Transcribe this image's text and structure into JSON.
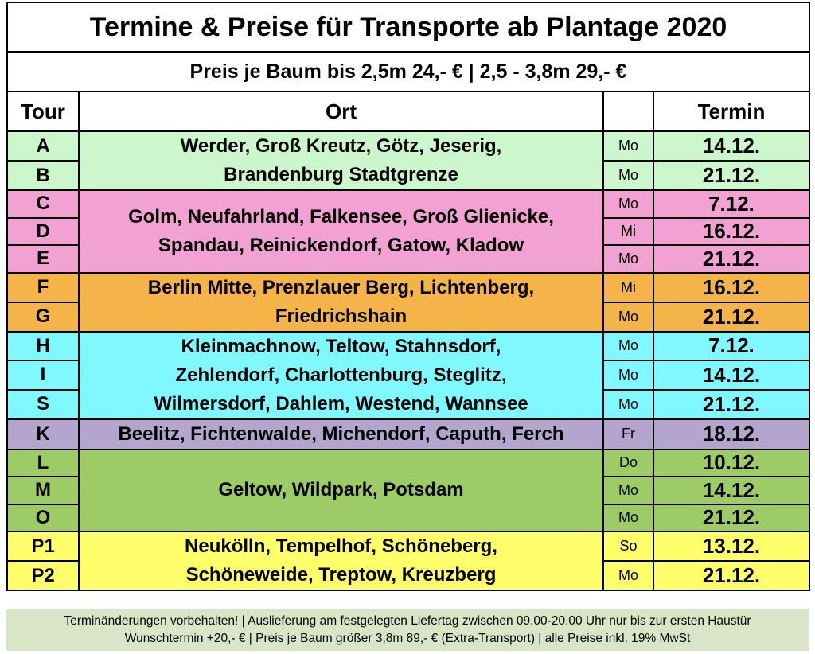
{
  "title": "Termine & Preise für Transporte ab Plantage 2020",
  "subtitle": "Preis je Baum bis 2,5m 24,- € | 2,5 - 3,8m 29,- €",
  "header": {
    "tour": "Tour",
    "ort": "Ort",
    "termin": "Termin"
  },
  "groups": [
    {
      "color": "#ccf7cc",
      "ort": [
        "Werder, Groß Kreutz, Götz, Jeserig,",
        "Brandenburg Stadtgrenze"
      ],
      "rows": [
        {
          "tour": "A",
          "day": "Mo",
          "date": "14.12."
        },
        {
          "tour": "B",
          "day": "Mo",
          "date": "21.12."
        }
      ]
    },
    {
      "color": "#f2a2d2",
      "ort": [
        "Golm, Neufahrland, Falkensee, Groß Glienicke,",
        "Spandau, Reinickendorf, Gatow, Kladow"
      ],
      "rows": [
        {
          "tour": "C",
          "day": "Mo",
          "date": "7.12."
        },
        {
          "tour": "D",
          "day": "Mi",
          "date": "16.12."
        },
        {
          "tour": "E",
          "day": "Mo",
          "date": "21.12."
        }
      ]
    },
    {
      "color": "#f5b449",
      "ort": [
        "Berlin Mitte, Prenzlauer Berg, Lichtenberg,",
        "Friedrichshain"
      ],
      "rows": [
        {
          "tour": "F",
          "day": "Mi",
          "date": "16.12."
        },
        {
          "tour": "G",
          "day": "Mo",
          "date": "21.12."
        }
      ]
    },
    {
      "color": "#80f8ff",
      "ort": [
        "Kleinmachnow, Teltow, Stahnsdorf,",
        "Zehlendorf, Charlottenburg, Steglitz,",
        "Wilmersdorf, Dahlem, Westend, Wannsee"
      ],
      "rows": [
        {
          "tour": "H",
          "day": "Mo",
          "date": "7.12."
        },
        {
          "tour": "I",
          "day": "Mo",
          "date": "14.12."
        },
        {
          "tour": "S",
          "day": "Mo",
          "date": "21.12."
        }
      ]
    },
    {
      "color": "#b3a5cb",
      "ort": [
        "Beelitz, Fichtenwalde, Michendorf, Caputh, Ferch"
      ],
      "rows": [
        {
          "tour": "K",
          "day": "Fr",
          "date": "18.12."
        }
      ]
    },
    {
      "color": "#9dcb66",
      "ort": [
        "Geltow, Wildpark, Potsdam"
      ],
      "rows": [
        {
          "tour": "L",
          "day": "Do",
          "date": "10.12."
        },
        {
          "tour": "M",
          "day": "Mo",
          "date": "14.12."
        },
        {
          "tour": "O",
          "day": "Mo",
          "date": "21.12."
        }
      ]
    },
    {
      "color": "#ffff6b",
      "ort": [
        "Neukölln, Tempelhof, Schöneberg,",
        "Schöneweide, Treptow, Kreuzberg"
      ],
      "rows": [
        {
          "tour": "P1",
          "day": "So",
          "date": "13.12."
        },
        {
          "tour": "P2",
          "day": "Mo",
          "date": "21.12."
        }
      ]
    }
  ],
  "footer": [
    "Terminänderungen vorbehalten! | Auslieferung am festgelegten Liefertag zwischen 09.00-20.00 Uhr nur bis zur ersten Haustür",
    "Wunschtermin +20,- € | Preis je Baum größer 3,8m 89,- € (Extra-Transport) | alle Preise inkl. 19% MwSt"
  ]
}
